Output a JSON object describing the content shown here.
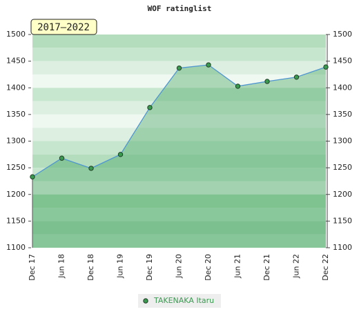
{
  "chart_data": {
    "type": "line",
    "title": "WOF ratinglist",
    "annotation": "2017–2022",
    "categories": [
      "Dec 17",
      "Jun 18",
      "Dec 18",
      "Jun 19",
      "Dec 19",
      "Jun 20",
      "Dec 20",
      "Jun 21",
      "Dec 21",
      "Jun 22",
      "Dec 22"
    ],
    "series": [
      {
        "name": "TAKENAKA Itaru",
        "color": "#3a9a50",
        "values": [
          1233,
          1268,
          1249,
          1275,
          1363,
          1437,
          1443,
          1403,
          1412,
          1420,
          1439
        ]
      }
    ],
    "ylim": [
      1100,
      1500
    ],
    "yticks": [
      1100,
      1150,
      1200,
      1250,
      1300,
      1350,
      1400,
      1450,
      1500
    ],
    "y2lim": [
      1100,
      1500
    ],
    "y2ticks": [
      1100,
      1150,
      1200,
      1250,
      1300,
      1350,
      1400,
      1450,
      1500
    ]
  }
}
